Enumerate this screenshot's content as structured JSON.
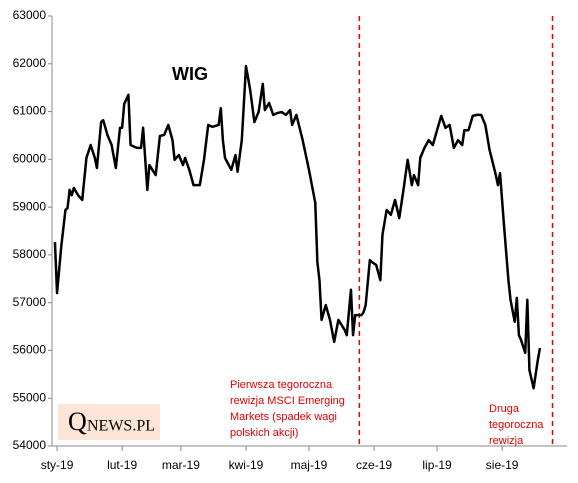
{
  "chart_data": {
    "type": "line",
    "title": "WIG",
    "x": [
      -1,
      0,
      2,
      4,
      5,
      6,
      7,
      8,
      10,
      12,
      14,
      16,
      18,
      19,
      21,
      22,
      24,
      26,
      28,
      30,
      31,
      32,
      34,
      35,
      38,
      40,
      41,
      43,
      44,
      47,
      49,
      51,
      53,
      55,
      56,
      58,
      60,
      61,
      63,
      65,
      68,
      70,
      72,
      74,
      77,
      78,
      79,
      80,
      83,
      85,
      86,
      88,
      90,
      92,
      94,
      96,
      98,
      99,
      101,
      103,
      105,
      107,
      109,
      111,
      112,
      114,
      117,
      120,
      123,
      124,
      125,
      126,
      128,
      130,
      132,
      134,
      137,
      138,
      140,
      141,
      142,
      145,
      146,
      147,
      149,
      150,
      152,
      154,
      155,
      157,
      159,
      161,
      163,
      165,
      167,
      169,
      170,
      172,
      173,
      175,
      177,
      179,
      181,
      183,
      185,
      187,
      189,
      191,
      193,
      194,
      196,
      198,
      200,
      202,
      204,
      206,
      209,
      210,
      211,
      213,
      215,
      216,
      218,
      219,
      220,
      221,
      223,
      224,
      225,
      227,
      229,
      230
    ],
    "series": [
      {
        "name": "WIG",
        "color": "#000000",
        "values": [
          58270,
          57200,
          58170,
          58940,
          58980,
          59360,
          59250,
          59400,
          59250,
          59150,
          60030,
          60300,
          60030,
          59820,
          60780,
          60820,
          60510,
          60300,
          59820,
          60660,
          60660,
          61160,
          61350,
          60300,
          60240,
          60240,
          60660,
          59360,
          59880,
          59670,
          60490,
          60510,
          60720,
          60400,
          59990,
          60090,
          59880,
          60030,
          59780,
          59460,
          59460,
          59990,
          60720,
          60680,
          60720,
          61070,
          60400,
          60030,
          59780,
          60090,
          59740,
          60400,
          61950,
          61450,
          60780,
          60990,
          61580,
          61030,
          61180,
          60930,
          60970,
          60990,
          60930,
          61030,
          60720,
          60930,
          60400,
          59780,
          59090,
          57850,
          57470,
          56640,
          56950,
          56640,
          56180,
          56640,
          56430,
          56320,
          57270,
          56320,
          56740,
          56740,
          56800,
          56950,
          57890,
          57850,
          57790,
          57470,
          58420,
          58940,
          58840,
          59150,
          58770,
          59360,
          59990,
          59460,
          59670,
          59460,
          60030,
          60240,
          60400,
          60300,
          60610,
          60910,
          60660,
          60720,
          60240,
          60400,
          60300,
          60610,
          60610,
          60910,
          60930,
          60930,
          60720,
          60200,
          59670,
          59460,
          59710,
          58560,
          57470,
          57060,
          56600,
          57100,
          56320,
          56220,
          55950,
          57060,
          55590,
          55210,
          55800,
          56050
        ]
      }
    ],
    "xlim": [
      -2.4,
      242.9
    ],
    "xticks": [
      {
        "value": 0,
        "label": "sty-19"
      },
      {
        "value": 31,
        "label": "lut-19"
      },
      {
        "value": 59,
        "label": "mar-19"
      },
      {
        "value": 90,
        "label": "kwi-19"
      },
      {
        "value": 120,
        "label": "maj-19"
      },
      {
        "value": 151,
        "label": "cze-19"
      },
      {
        "value": 181,
        "label": "lip-19"
      },
      {
        "value": 212,
        "label": "sie-19"
      }
    ],
    "ylim": [
      54000,
      63000
    ],
    "yticks": [
      54000,
      55000,
      56000,
      57000,
      58000,
      59000,
      60000,
      61000,
      62000,
      63000
    ],
    "vlines": [
      144,
      236
    ],
    "vline_color": "#e00000",
    "annotations": [
      {
        "lines": [
          "Pierwsza tegoroczna",
          "rewizja MSCI Emerging",
          "Markets (spadek wagi",
          "polskich akcji)"
        ]
      },
      {
        "lines": [
          "Druga",
          "tegoroczna",
          "rewizja"
        ]
      }
    ],
    "logo": {
      "initial": "Q",
      "rest": "NEWS.PL"
    }
  }
}
